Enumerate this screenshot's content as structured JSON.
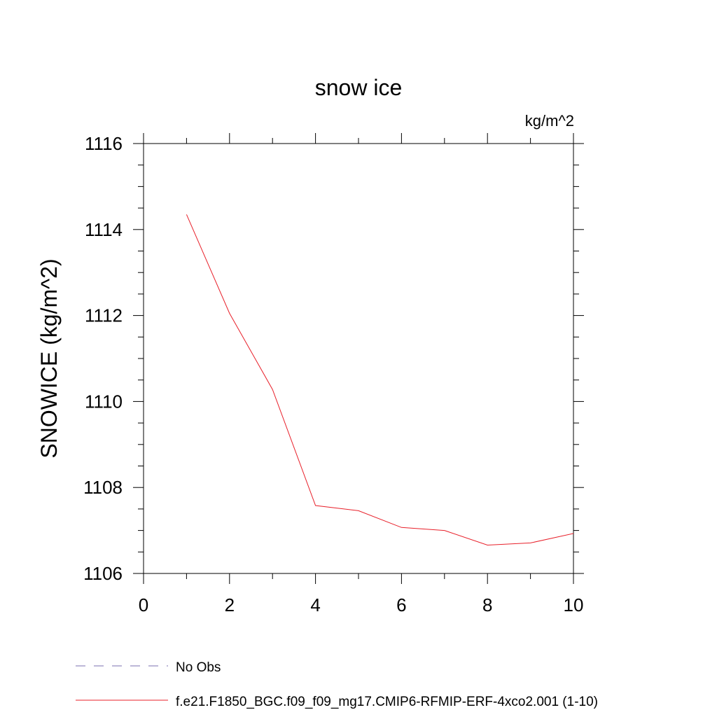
{
  "chart_data": {
    "type": "line",
    "title": "snow ice",
    "units_label": "kg/m^2",
    "ylabel": "SNOWICE  (kg/m^2)",
    "xlabel": "",
    "xlim": [
      0,
      10
    ],
    "ylim": [
      1106,
      1116
    ],
    "x_ticks": [
      0,
      2,
      4,
      6,
      8,
      10
    ],
    "y_ticks": [
      1106,
      1108,
      1110,
      1112,
      1114,
      1116
    ],
    "x_minor_step": 1,
    "y_minor_step": 0.5,
    "grid": false,
    "legend_position": "bottom-left",
    "series": [
      {
        "name": "No Obs",
        "color": "#7b6fb0",
        "dash": "dashed",
        "x": [],
        "values": []
      },
      {
        "name": "f.e21.F1850_BGC.f09_f09_mg17.CMIP6-RFMIP-ERF-4xco2.001 (1-10)",
        "color": "#e8202a",
        "dash": "solid",
        "x": [
          1,
          2,
          3,
          4,
          5,
          6,
          7,
          8,
          9,
          10
        ],
        "values": [
          1114.35,
          1112.05,
          1110.28,
          1107.58,
          1107.46,
          1107.07,
          1107.0,
          1106.66,
          1106.71,
          1106.93
        ]
      }
    ]
  }
}
